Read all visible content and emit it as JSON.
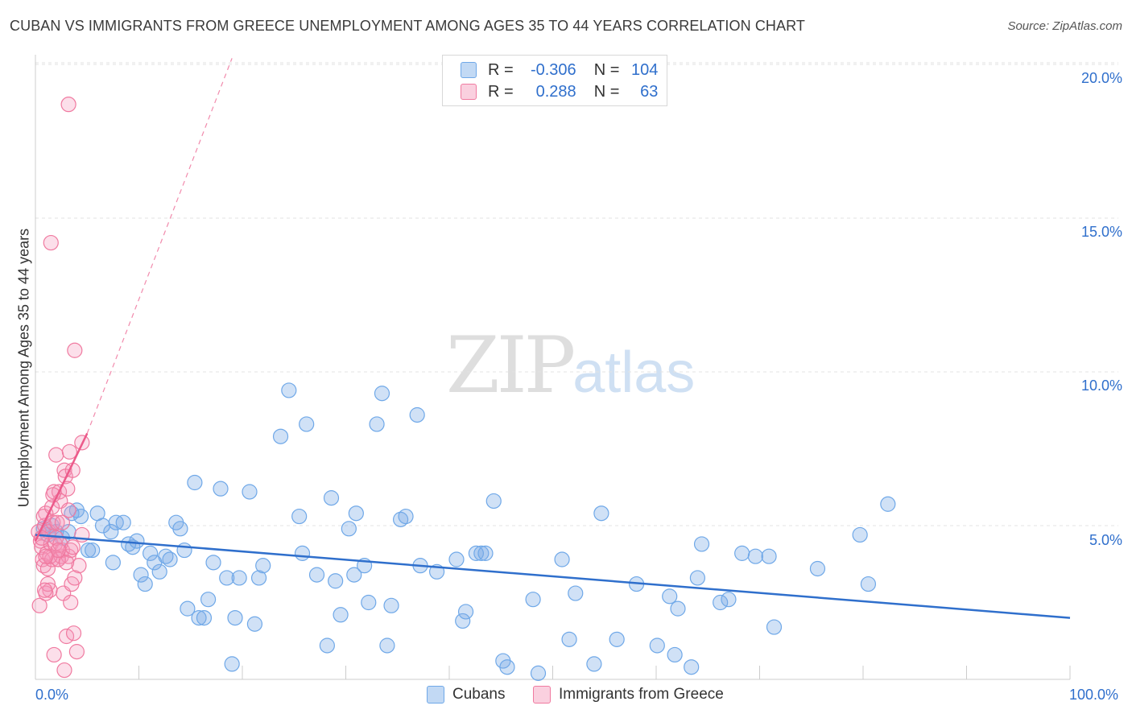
{
  "title": "CUBAN VS IMMIGRANTS FROM GREECE UNEMPLOYMENT AMONG AGES 35 TO 44 YEARS CORRELATION CHART",
  "source": "Source: ZipAtlas.com",
  "watermark": {
    "zip": "ZIP",
    "atlas": "atlas"
  },
  "legend": {
    "rows": [
      {
        "r_label": "R =",
        "r_value": "-0.306",
        "n_label": "N =",
        "n_value": "104"
      },
      {
        "r_label": "R =",
        "r_value": "0.288",
        "n_label": "N =",
        "n_value": "63"
      }
    ]
  },
  "colors": {
    "blue": "#6fa8e8",
    "blue_fill": "rgba(120,170,230,0.35)",
    "blue_line": "#2f6fcc",
    "pink": "#f07aa0",
    "pink_fill": "rgba(245,150,185,0.30)",
    "pink_line": "#ec5a8a",
    "grid": "#e3e3e3",
    "axis_text": "#2f6fcc"
  },
  "chart_data": {
    "type": "scatter",
    "title": "CUBAN VS IMMIGRANTS FROM GREECE UNEMPLOYMENT AMONG AGES 35 TO 44 YEARS CORRELATION CHART",
    "xlabel": "",
    "ylabel": "Unemployment Among Ages 35 to 44 years",
    "xlim": [
      0,
      100
    ],
    "ylim": [
      0,
      21
    ],
    "x_tick_labels": [
      "0.0%",
      "100.0%"
    ],
    "y_ticks": [
      5,
      10,
      15,
      20
    ],
    "y_tick_labels": [
      "5.0%",
      "10.0%",
      "15.0%",
      "20.0%"
    ],
    "legend_entries": [
      "Cubans",
      "Immigrants from Greece"
    ],
    "series": [
      {
        "name": "Cubans",
        "r": -0.306,
        "n": 104,
        "trend": {
          "x": [
            0,
            100
          ],
          "y": [
            4.7,
            2.0
          ]
        },
        "points": [
          [
            0.8,
            4.9
          ],
          [
            1.2,
            4.7
          ],
          [
            1.6,
            5.0
          ],
          [
            2.0,
            4.8
          ],
          [
            2.6,
            4.6
          ],
          [
            3.2,
            4.8
          ],
          [
            3.5,
            5.4
          ],
          [
            4.0,
            5.5
          ],
          [
            4.4,
            5.3
          ],
          [
            5.1,
            4.2
          ],
          [
            5.5,
            4.2
          ],
          [
            6.0,
            5.4
          ],
          [
            6.5,
            5.0
          ],
          [
            7.3,
            4.8
          ],
          [
            7.5,
            3.8
          ],
          [
            7.8,
            5.1
          ],
          [
            8.5,
            5.1
          ],
          [
            9.0,
            4.4
          ],
          [
            9.4,
            4.3
          ],
          [
            9.8,
            4.5
          ],
          [
            10.2,
            3.4
          ],
          [
            10.6,
            3.1
          ],
          [
            11.1,
            4.1
          ],
          [
            11.5,
            3.8
          ],
          [
            12.0,
            3.5
          ],
          [
            12.6,
            4.0
          ],
          [
            13.0,
            3.9
          ],
          [
            13.6,
            5.1
          ],
          [
            14.0,
            4.9
          ],
          [
            14.4,
            4.2
          ],
          [
            14.7,
            2.3
          ],
          [
            15.4,
            6.4
          ],
          [
            15.8,
            2.0
          ],
          [
            16.3,
            2.0
          ],
          [
            16.7,
            2.6
          ],
          [
            17.2,
            3.8
          ],
          [
            17.9,
            6.2
          ],
          [
            18.5,
            3.3
          ],
          [
            19.0,
            0.5
          ],
          [
            19.3,
            2.0
          ],
          [
            19.7,
            3.3
          ],
          [
            20.7,
            6.1
          ],
          [
            21.2,
            1.8
          ],
          [
            21.6,
            3.3
          ],
          [
            22.0,
            3.7
          ],
          [
            23.7,
            7.9
          ],
          [
            24.5,
            9.4
          ],
          [
            25.5,
            5.3
          ],
          [
            25.8,
            4.1
          ],
          [
            26.2,
            8.3
          ],
          [
            27.2,
            3.4
          ],
          [
            28.2,
            1.1
          ],
          [
            28.6,
            5.9
          ],
          [
            29.0,
            3.2
          ],
          [
            29.5,
            2.1
          ],
          [
            30.3,
            4.9
          ],
          [
            30.8,
            3.4
          ],
          [
            31.0,
            5.4
          ],
          [
            31.8,
            3.7
          ],
          [
            32.2,
            2.5
          ],
          [
            33.0,
            8.3
          ],
          [
            33.5,
            9.3
          ],
          [
            34.0,
            1.1
          ],
          [
            34.4,
            2.4
          ],
          [
            35.3,
            5.2
          ],
          [
            35.8,
            5.3
          ],
          [
            36.9,
            8.6
          ],
          [
            37.2,
            3.7
          ],
          [
            38.8,
            3.5
          ],
          [
            40.7,
            3.9
          ],
          [
            41.3,
            1.9
          ],
          [
            41.6,
            2.2
          ],
          [
            42.6,
            4.1
          ],
          [
            43.1,
            4.1
          ],
          [
            43.5,
            4.1
          ],
          [
            44.3,
            5.8
          ],
          [
            45.2,
            0.6
          ],
          [
            45.6,
            0.4
          ],
          [
            48.1,
            2.6
          ],
          [
            48.6,
            0.2
          ],
          [
            50.9,
            3.9
          ],
          [
            51.6,
            1.3
          ],
          [
            52.2,
            2.8
          ],
          [
            54.0,
            0.5
          ],
          [
            54.7,
            5.4
          ],
          [
            56.2,
            1.3
          ],
          [
            58.1,
            3.1
          ],
          [
            60.1,
            1.1
          ],
          [
            61.3,
            2.7
          ],
          [
            61.8,
            0.8
          ],
          [
            62.1,
            2.3
          ],
          [
            63.4,
            0.4
          ],
          [
            64.0,
            3.3
          ],
          [
            64.4,
            4.4
          ],
          [
            66.2,
            2.5
          ],
          [
            67.0,
            2.6
          ],
          [
            68.3,
            4.1
          ],
          [
            69.6,
            4.0
          ],
          [
            70.9,
            4.0
          ],
          [
            71.4,
            1.7
          ],
          [
            75.6,
            3.6
          ],
          [
            79.7,
            4.7
          ],
          [
            80.5,
            3.1
          ],
          [
            82.4,
            5.7
          ]
        ]
      },
      {
        "name": "Immigrants from Greece",
        "r": 0.288,
        "n": 63,
        "trend": {
          "x": [
            0,
            5
          ],
          "y": [
            4.5,
            8.0
          ]
        },
        "trend_dashed": {
          "x": [
            5,
            19
          ],
          "y": [
            8.0,
            20.2
          ]
        },
        "points": [
          [
            0.3,
            4.8
          ],
          [
            0.5,
            4.5
          ],
          [
            0.6,
            4.3
          ],
          [
            0.7,
            3.9
          ],
          [
            0.8,
            3.7
          ],
          [
            0.9,
            5.0
          ],
          [
            1.0,
            5.4
          ],
          [
            1.1,
            4.1
          ],
          [
            1.2,
            3.6
          ],
          [
            1.3,
            4.8
          ],
          [
            1.4,
            2.9
          ],
          [
            1.5,
            4.4
          ],
          [
            1.6,
            3.9
          ],
          [
            1.7,
            5.1
          ],
          [
            1.8,
            6.1
          ],
          [
            1.9,
            4.4
          ],
          [
            2.0,
            7.3
          ],
          [
            2.1,
            5.1
          ],
          [
            2.2,
            3.9
          ],
          [
            2.3,
            6.1
          ],
          [
            2.4,
            5.8
          ],
          [
            2.5,
            4.0
          ],
          [
            2.6,
            4.2
          ],
          [
            2.7,
            2.8
          ],
          [
            2.8,
            6.8
          ],
          [
            2.9,
            6.6
          ],
          [
            3.0,
            1.4
          ],
          [
            3.1,
            6.2
          ],
          [
            3.2,
            4.0
          ],
          [
            3.3,
            7.4
          ],
          [
            3.4,
            4.2
          ],
          [
            3.5,
            3.1
          ],
          [
            3.6,
            6.8
          ],
          [
            3.7,
            1.5
          ],
          [
            3.8,
            10.7
          ],
          [
            4.0,
            0.9
          ],
          [
            4.2,
            3.7
          ],
          [
            4.5,
            4.7
          ],
          [
            0.4,
            2.4
          ],
          [
            0.6,
            4.6
          ],
          [
            0.8,
            5.3
          ],
          [
            1.0,
            2.8
          ],
          [
            1.2,
            3.1
          ],
          [
            1.4,
            4.0
          ],
          [
            1.6,
            5.6
          ],
          [
            1.8,
            0.8
          ],
          [
            2.0,
            4.6
          ],
          [
            2.2,
            3.9
          ],
          [
            2.4,
            4.4
          ],
          [
            2.6,
            5.1
          ],
          [
            2.8,
            0.3
          ],
          [
            3.0,
            3.8
          ],
          [
            3.2,
            5.5
          ],
          [
            3.4,
            2.5
          ],
          [
            3.6,
            4.3
          ],
          [
            3.8,
            3.3
          ],
          [
            1.5,
            14.2
          ],
          [
            3.2,
            18.7
          ],
          [
            4.5,
            7.7
          ],
          [
            2.2,
            4.2
          ],
          [
            1.0,
            4.0
          ],
          [
            1.7,
            6.0
          ],
          [
            0.9,
            2.9
          ]
        ]
      }
    ]
  }
}
